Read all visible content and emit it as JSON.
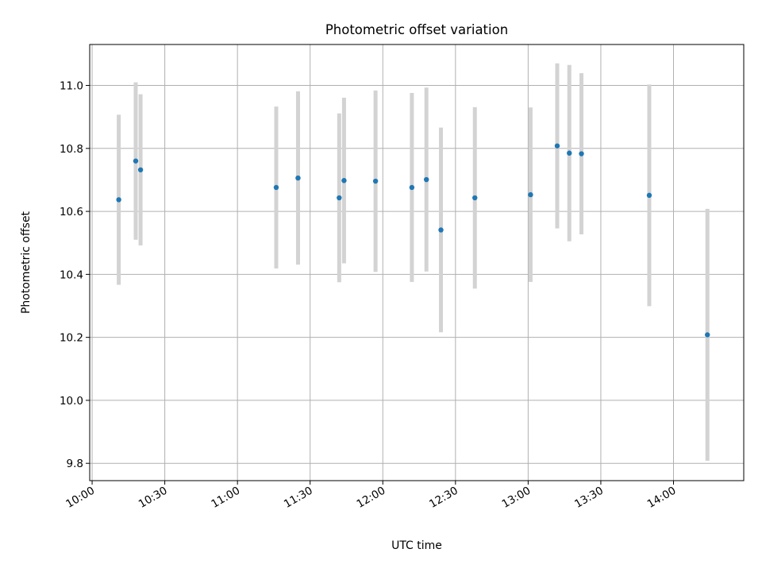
{
  "chart_data": {
    "type": "scatter",
    "title": "Photometric offset variation",
    "xlabel": "UTC time",
    "ylabel": "Photometric offset",
    "x_unit": "HH:MM UTC",
    "xlim": [
      "09:59",
      "14:29"
    ],
    "ylim": [
      9.745,
      11.13
    ],
    "grid": true,
    "x_ticks": [
      "10:00",
      "10:30",
      "11:00",
      "11:30",
      "12:00",
      "12:30",
      "13:00",
      "13:30",
      "14:00"
    ],
    "y_ticks": [
      9.8,
      10.0,
      10.2,
      10.4,
      10.6,
      10.8,
      11.0
    ],
    "y_tick_labels": [
      "9.8",
      "10.0",
      "10.2",
      "10.4",
      "10.6",
      "10.8",
      "11.0"
    ],
    "marker_color": "#1f77b4",
    "errorbar_color": "#d3d3d3",
    "points": [
      {
        "x": "10:11",
        "y": 10.637,
        "err": 0.27
      },
      {
        "x": "10:18",
        "y": 10.76,
        "err": 0.25
      },
      {
        "x": "10:20",
        "y": 10.732,
        "err": 0.24
      },
      {
        "x": "11:16",
        "y": 10.676,
        "err": 0.257
      },
      {
        "x": "11:25",
        "y": 10.706,
        "err": 0.275
      },
      {
        "x": "11:42",
        "y": 10.643,
        "err": 0.268
      },
      {
        "x": "11:44",
        "y": 10.698,
        "err": 0.263
      },
      {
        "x": "11:57",
        "y": 10.696,
        "err": 0.288
      },
      {
        "x": "12:12",
        "y": 10.676,
        "err": 0.3
      },
      {
        "x": "12:18",
        "y": 10.701,
        "err": 0.292
      },
      {
        "x": "12:24",
        "y": 10.541,
        "err": 0.325
      },
      {
        "x": "12:38",
        "y": 10.643,
        "err": 0.288
      },
      {
        "x": "13:01",
        "y": 10.653,
        "err": 0.277
      },
      {
        "x": "13:12",
        "y": 10.808,
        "err": 0.262
      },
      {
        "x": "13:17",
        "y": 10.785,
        "err": 0.28
      },
      {
        "x": "13:22",
        "y": 10.783,
        "err": 0.256
      },
      {
        "x": "13:50",
        "y": 10.651,
        "err": 0.352
      },
      {
        "x": "14:14",
        "y": 10.208,
        "err": 0.4
      }
    ]
  }
}
